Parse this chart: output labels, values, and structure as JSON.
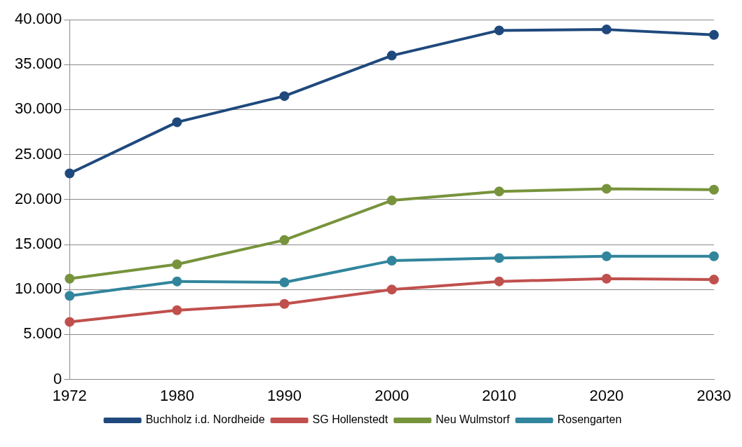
{
  "chart_data": {
    "type": "line",
    "categories": [
      "1972",
      "1980",
      "1990",
      "2000",
      "2010",
      "2020",
      "2030"
    ],
    "series": [
      {
        "name": "Buchholz i.d. Nordheide",
        "color": "#1f497d",
        "values": [
          22900,
          28600,
          31500,
          36000,
          38800,
          38900,
          38300
        ]
      },
      {
        "name": "SG Hollenstedt",
        "color": "#c0504d",
        "values": [
          6400,
          7700,
          8400,
          10000,
          10900,
          11200,
          11100
        ]
      },
      {
        "name": "Neu Wulmstorf",
        "color": "#77933c",
        "values": [
          11200,
          12800,
          15500,
          19900,
          20900,
          21200,
          21100
        ]
      },
      {
        "name": "Rosengarten",
        "color": "#31859c",
        "values": [
          9300,
          10900,
          10800,
          13200,
          13500,
          13700,
          13700
        ]
      }
    ],
    "ylim": [
      0,
      40000
    ],
    "yticks": [
      0,
      {
        "value": 5000,
        "label": "5.000"
      },
      {
        "value": 10000,
        "label": "10.000"
      },
      {
        "value": 15000,
        "label": "15.000"
      },
      {
        "value": 20000,
        "label": "20.000"
      },
      {
        "value": 25000,
        "label": "25.000"
      },
      {
        "value": 30000,
        "label": "30.000"
      },
      {
        "value": 35000,
        "label": "35.000"
      },
      {
        "value": 40000,
        "label": "40.000"
      }
    ],
    "grid": "y",
    "legend": "bottom",
    "marker": "circle",
    "line_style": "solid"
  }
}
